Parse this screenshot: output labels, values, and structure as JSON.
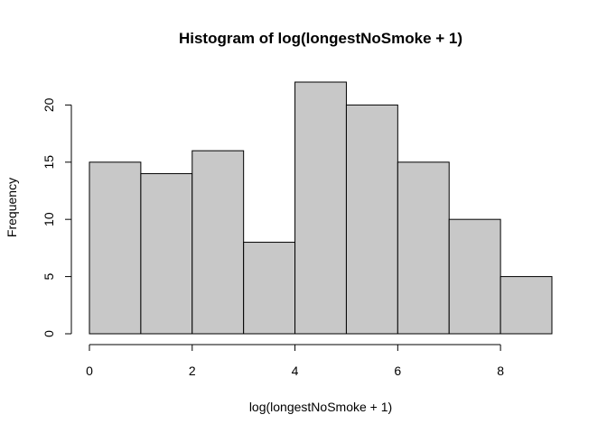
{
  "chart_data": {
    "type": "bar",
    "title": "Histogram of log(longestNoSmoke + 1)",
    "xlabel": "log(longestNoSmoke + 1)",
    "ylabel": "Frequency",
    "bins": [
      {
        "x0": 0,
        "x1": 1,
        "count": 15
      },
      {
        "x0": 1,
        "x1": 2,
        "count": 14
      },
      {
        "x0": 2,
        "x1": 3,
        "count": 16
      },
      {
        "x0": 3,
        "x1": 4,
        "count": 8
      },
      {
        "x0": 4,
        "x1": 5,
        "count": 22
      },
      {
        "x0": 5,
        "x1": 6,
        "count": 20
      },
      {
        "x0": 6,
        "x1": 7,
        "count": 15
      },
      {
        "x0": 7,
        "x1": 8,
        "count": 10
      },
      {
        "x0": 8,
        "x1": 9,
        "count": 5
      }
    ],
    "xlim": [
      0,
      9
    ],
    "ylim": [
      0,
      22
    ],
    "xticks": [
      0,
      2,
      4,
      6,
      8
    ],
    "yticks": [
      0,
      5,
      10,
      15,
      20
    ],
    "bar_color": "#c8c8c8",
    "edge_color": "#000000",
    "grid": false,
    "legend": "none"
  }
}
